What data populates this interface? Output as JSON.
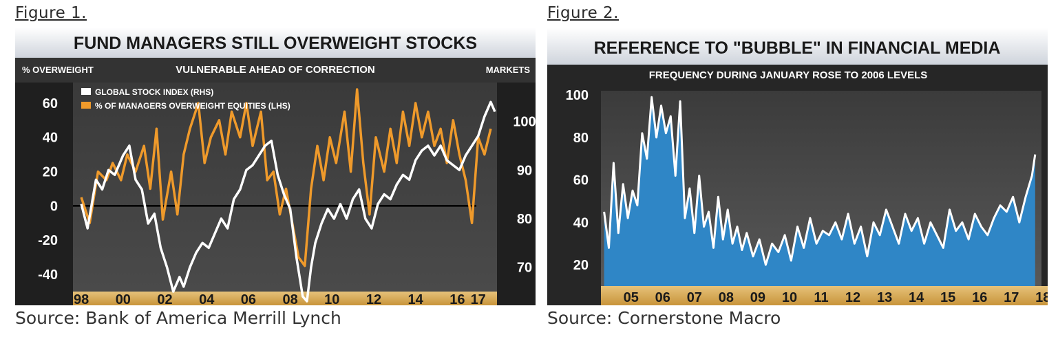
{
  "figures": [
    {
      "label": "Figure 1.",
      "source": "Source: Bank of America Merrill Lynch"
    },
    {
      "label": "Figure 2.",
      "source": "Source: Cornerstone Macro"
    }
  ],
  "colors": {
    "orange": "#ef9a2b",
    "white": "#ffffff",
    "blue": "#2f86c6",
    "gold_band": "#d8a84e",
    "dark_bg": "#2b2b2b"
  },
  "chart_data": [
    {
      "type": "line",
      "title": "FUND MANAGERS STILL OVERWEIGHT STOCKS",
      "subtitle": "VULNERABLE AHEAD OF CORRECTION",
      "ylabel": "% OVERWEIGHT",
      "y2label": "MARKETS",
      "ylim": [
        -50,
        72
      ],
      "y2lim": [
        65,
        108
      ],
      "yticks": [
        "60",
        "40",
        "20",
        "0",
        "-20",
        "-40"
      ],
      "y2ticks": [
        "100",
        "90",
        "80",
        "70"
      ],
      "xticks": [
        "98",
        "00",
        "02",
        "04",
        "06",
        "08",
        "10",
        "12",
        "14",
        "16",
        "17"
      ],
      "xlim": [
        1997.6,
        2017.9
      ],
      "series": [
        {
          "name": "% OF MANAGERS OVERWEIGHT EQUITIES (LHS)",
          "axis": "left",
          "color": "#ef9a2b",
          "x": [
            1998.0,
            1998.4,
            1998.8,
            1999.2,
            1999.5,
            1999.9,
            2000.2,
            2000.6,
            2001.0,
            2001.3,
            2001.6,
            2001.9,
            2002.3,
            2002.6,
            2002.9,
            2003.2,
            2003.6,
            2003.9,
            2004.2,
            2004.6,
            2004.9,
            2005.2,
            2005.6,
            2005.9,
            2006.2,
            2006.6,
            2006.9,
            2007.2,
            2007.5,
            2007.8,
            2008.1,
            2008.4,
            2008.7,
            2009.0,
            2009.3,
            2009.6,
            2009.9,
            2010.2,
            2010.6,
            2010.9,
            2011.2,
            2011.5,
            2011.8,
            2012.1,
            2012.5,
            2012.8,
            2013.1,
            2013.4,
            2013.7,
            2014.0,
            2014.3,
            2014.6,
            2014.9,
            2015.2,
            2015.5,
            2015.8,
            2016.1,
            2016.4,
            2016.7,
            2017.0,
            2017.3,
            2017.6
          ],
          "values": [
            5,
            -10,
            20,
            15,
            25,
            15,
            30,
            20,
            35,
            10,
            45,
            -8,
            20,
            -5,
            30,
            45,
            60,
            25,
            40,
            50,
            30,
            55,
            40,
            60,
            35,
            55,
            15,
            20,
            -5,
            10,
            -10,
            -30,
            -35,
            10,
            35,
            15,
            40,
            25,
            55,
            20,
            68,
            25,
            -5,
            40,
            20,
            45,
            25,
            55,
            35,
            60,
            40,
            55,
            35,
            45,
            25,
            50,
            30,
            15,
            -10,
            40,
            30,
            45
          ]
        },
        {
          "name": "GLOBAL STOCK INDEX (RHS)",
          "axis": "right",
          "color": "#ffffff",
          "x": [
            1998.0,
            1998.3,
            1998.7,
            1999.0,
            1999.3,
            1999.6,
            2000.0,
            2000.3,
            2000.6,
            2000.9,
            2001.2,
            2001.5,
            2001.8,
            2002.1,
            2002.4,
            2002.7,
            2002.9,
            2003.2,
            2003.5,
            2003.8,
            2004.1,
            2004.4,
            2004.7,
            2005.0,
            2005.3,
            2005.6,
            2005.9,
            2006.2,
            2006.5,
            2006.8,
            2007.1,
            2007.4,
            2007.7,
            2008.0,
            2008.3,
            2008.6,
            2008.8,
            2009.0,
            2009.2,
            2009.5,
            2009.8,
            2010.1,
            2010.4,
            2010.7,
            2011.0,
            2011.3,
            2011.6,
            2011.9,
            2012.2,
            2012.5,
            2012.8,
            2013.1,
            2013.4,
            2013.7,
            2014.0,
            2014.3,
            2014.6,
            2014.9,
            2015.2,
            2015.5,
            2015.8,
            2016.1,
            2016.4,
            2016.7,
            2017.0,
            2017.3,
            2017.6,
            2017.8
          ],
          "values": [
            83,
            78,
            88,
            86,
            90,
            89,
            93,
            95,
            88,
            86,
            79,
            81,
            74,
            70,
            65,
            68,
            66,
            70,
            73,
            75,
            74,
            77,
            80,
            78,
            84,
            86,
            90,
            91,
            93,
            95,
            96,
            89,
            85,
            82,
            72,
            64,
            63,
            70,
            75,
            79,
            82,
            80,
            83,
            80,
            84,
            86,
            80,
            78,
            83,
            85,
            84,
            87,
            89,
            88,
            92,
            94,
            95,
            93,
            95,
            92,
            91,
            90,
            93,
            95,
            97,
            101,
            104,
            102
          ]
        }
      ]
    },
    {
      "type": "area",
      "title": "REFERENCE TO \"BUBBLE\" IN FINANCIAL MEDIA",
      "subtitle": "FREQUENCY DURING JANUARY ROSE TO 2006 LEVELS",
      "ylim": [
        10,
        102
      ],
      "yticks": [
        "100",
        "80",
        "60",
        "40",
        "20"
      ],
      "xticks": [
        "05",
        "06",
        "07",
        "08",
        "09",
        "10",
        "11",
        "12",
        "13",
        "14",
        "15",
        "16",
        "17",
        "18"
      ],
      "xlim": [
        2004.4,
        2018.3
      ],
      "series": [
        {
          "color": "#2f86c6",
          "x": [
            2004.5,
            2004.65,
            2004.8,
            2004.95,
            2005.1,
            2005.25,
            2005.4,
            2005.55,
            2005.7,
            2005.85,
            2006.0,
            2006.15,
            2006.3,
            2006.45,
            2006.6,
            2006.75,
            2006.9,
            2007.05,
            2007.2,
            2007.35,
            2007.5,
            2007.65,
            2007.8,
            2007.95,
            2008.1,
            2008.25,
            2008.4,
            2008.55,
            2008.7,
            2008.85,
            2009.0,
            2009.2,
            2009.4,
            2009.6,
            2009.8,
            2010.0,
            2010.2,
            2010.4,
            2010.6,
            2010.8,
            2011.0,
            2011.2,
            2011.4,
            2011.6,
            2011.8,
            2012.0,
            2012.2,
            2012.4,
            2012.6,
            2012.8,
            2013.0,
            2013.2,
            2013.4,
            2013.6,
            2013.8,
            2014.0,
            2014.2,
            2014.4,
            2014.6,
            2014.8,
            2015.0,
            2015.2,
            2015.4,
            2015.6,
            2015.8,
            2016.0,
            2016.2,
            2016.4,
            2016.6,
            2016.8,
            2017.0,
            2017.2,
            2017.4,
            2017.6,
            2017.8,
            2018.0,
            2018.1
          ],
          "values": [
            45,
            28,
            68,
            35,
            58,
            42,
            55,
            48,
            82,
            70,
            99,
            80,
            95,
            82,
            90,
            62,
            97,
            42,
            56,
            35,
            62,
            38,
            45,
            28,
            52,
            32,
            46,
            30,
            38,
            27,
            35,
            24,
            32,
            20,
            30,
            26,
            34,
            22,
            38,
            28,
            42,
            30,
            36,
            34,
            40,
            32,
            44,
            30,
            38,
            24,
            40,
            34,
            46,
            38,
            30,
            44,
            36,
            42,
            30,
            40,
            34,
            28,
            46,
            36,
            40,
            32,
            44,
            38,
            34,
            42,
            48,
            45,
            52,
            40,
            52,
            62,
            72
          ]
        }
      ]
    }
  ]
}
